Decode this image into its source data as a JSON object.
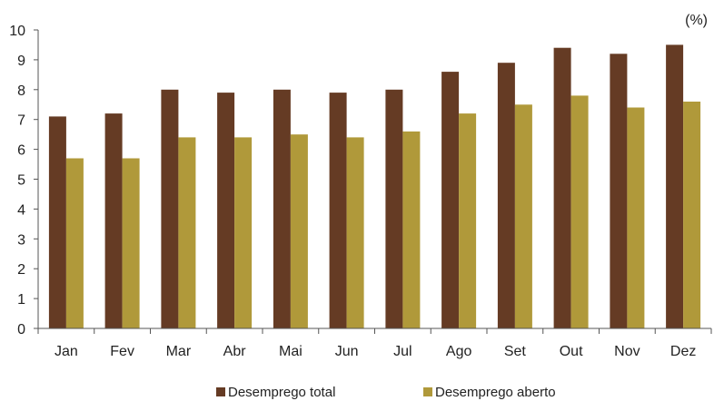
{
  "chart_data": {
    "type": "bar",
    "unit_label": "(%)",
    "categories": [
      "Jan",
      "Fev",
      "Mar",
      "Abr",
      "Mai",
      "Jun",
      "Jul",
      "Ago",
      "Set",
      "Out",
      "Nov",
      "Dez"
    ],
    "series": [
      {
        "name": "Desemprego total",
        "color": "#653b24",
        "values": [
          7.1,
          7.2,
          8.0,
          7.9,
          8.0,
          7.9,
          8.0,
          8.6,
          8.9,
          9.4,
          9.2,
          9.5
        ]
      },
      {
        "name": "Desemprego aberto",
        "color": "#b0993a",
        "values": [
          5.7,
          5.7,
          6.4,
          6.4,
          6.5,
          6.4,
          6.6,
          7.2,
          7.5,
          7.8,
          7.4,
          7.6
        ]
      }
    ],
    "ylim": [
      0,
      10
    ],
    "yticks": [
      0,
      1,
      2,
      3,
      4,
      5,
      6,
      7,
      8,
      9,
      10
    ],
    "grid": false,
    "legend_position": "bottom"
  }
}
